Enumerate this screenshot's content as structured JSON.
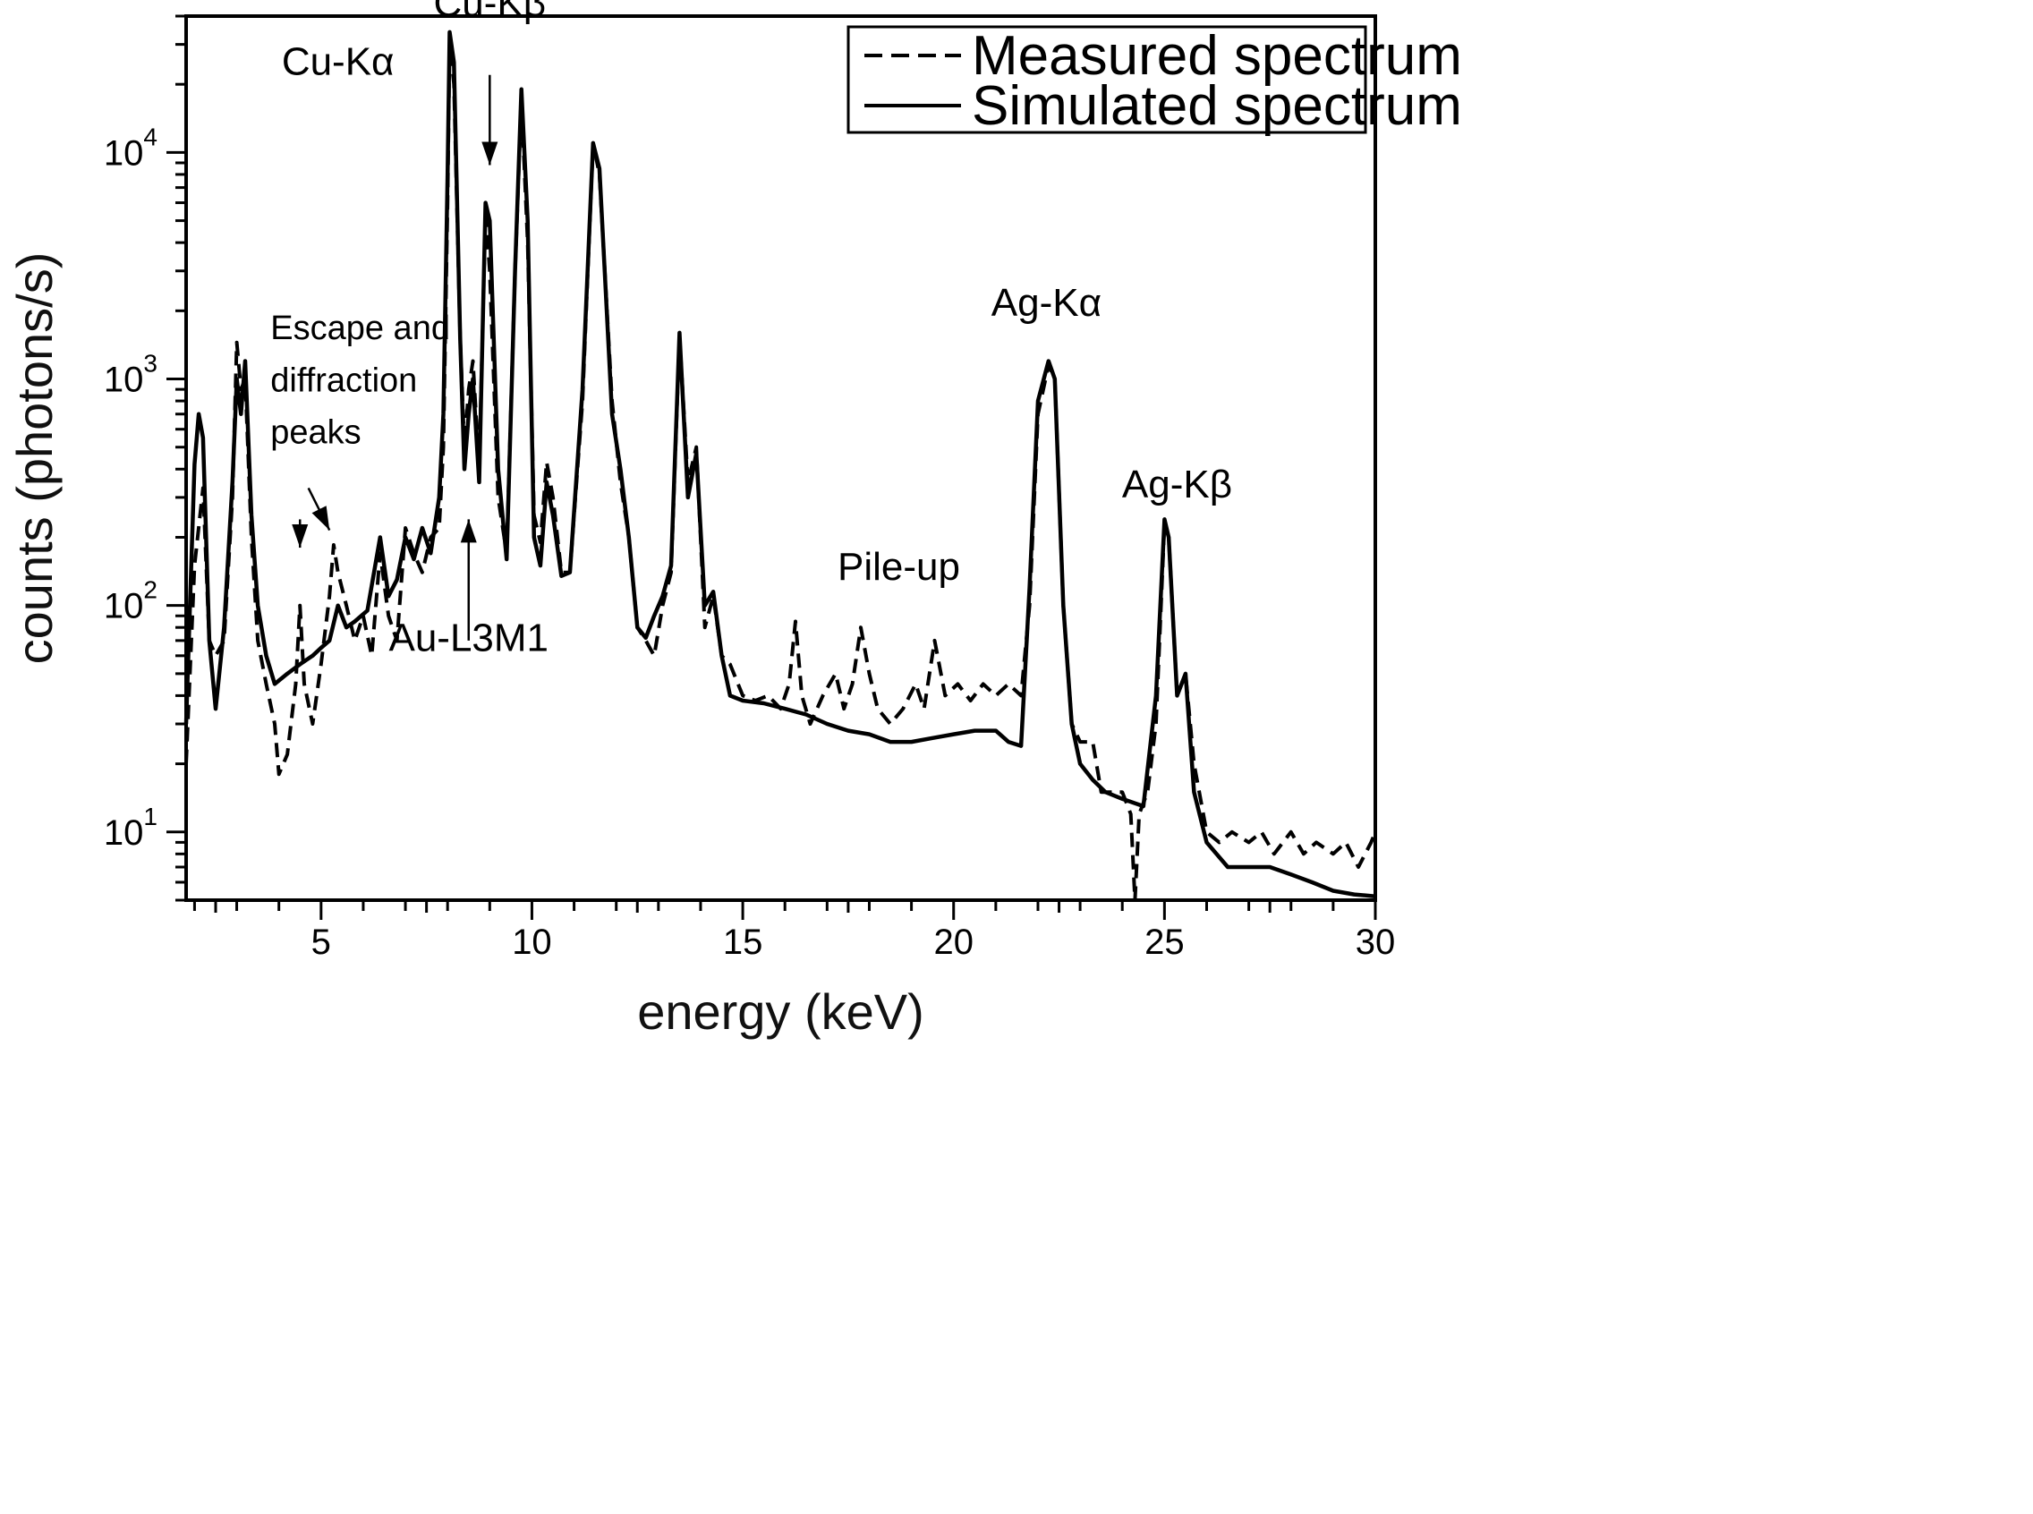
{
  "chart_data": {
    "type": "line",
    "title": "",
    "xlabel": "energy (keV)",
    "ylabel": "counts (photons/s)",
    "xlim": [
      1.8,
      30
    ],
    "ylim": [
      5,
      40000
    ],
    "yscale": "log",
    "grid": false,
    "legend_position": "top-right",
    "x_ticks": [
      {
        "value": 5,
        "label": "5"
      },
      {
        "value": 10,
        "label": "10"
      },
      {
        "value": 15,
        "label": "15"
      },
      {
        "value": 20,
        "label": "20"
      },
      {
        "value": 25,
        "label": "25"
      },
      {
        "value": 30,
        "label": "30"
      }
    ],
    "y_ticks": [
      {
        "value": 10,
        "base": "10",
        "exp": "1"
      },
      {
        "value": 100,
        "base": "10",
        "exp": "2"
      },
      {
        "value": 1000,
        "base": "10",
        "exp": "3"
      },
      {
        "value": 10000,
        "base": "10",
        "exp": "4"
      }
    ],
    "series": [
      {
        "name": "Measured spectrum",
        "style": "dashed",
        "color": "#000000",
        "points": [
          [
            1.8,
            20
          ],
          [
            2.0,
            150
          ],
          [
            2.2,
            330
          ],
          [
            2.35,
            70
          ],
          [
            2.5,
            60
          ],
          [
            2.7,
            70
          ],
          [
            2.9,
            300
          ],
          [
            3.0,
            1450
          ],
          [
            3.1,
            900
          ],
          [
            3.2,
            1000
          ],
          [
            3.35,
            200
          ],
          [
            3.5,
            70
          ],
          [
            3.7,
            45
          ],
          [
            3.9,
            30
          ],
          [
            4.0,
            18
          ],
          [
            4.2,
            22
          ],
          [
            4.4,
            45
          ],
          [
            4.5,
            100
          ],
          [
            4.6,
            45
          ],
          [
            4.8,
            30
          ],
          [
            5.0,
            55
          ],
          [
            5.2,
            110
          ],
          [
            5.3,
            185
          ],
          [
            5.4,
            140
          ],
          [
            5.6,
            100
          ],
          [
            5.8,
            70
          ],
          [
            6.0,
            90
          ],
          [
            6.2,
            60
          ],
          [
            6.4,
            170
          ],
          [
            6.6,
            90
          ],
          [
            6.8,
            70
          ],
          [
            7.0,
            220
          ],
          [
            7.2,
            170
          ],
          [
            7.4,
            140
          ],
          [
            7.6,
            200
          ],
          [
            7.8,
            220
          ],
          [
            7.9,
            500
          ],
          [
            8.0,
            6000
          ],
          [
            8.05,
            31000
          ],
          [
            8.15,
            20000
          ],
          [
            8.3,
            1500
          ],
          [
            8.4,
            500
          ],
          [
            8.5,
            900
          ],
          [
            8.6,
            1200
          ],
          [
            8.75,
            400
          ],
          [
            8.9,
            5500
          ],
          [
            9.0,
            3000
          ],
          [
            9.2,
            300
          ],
          [
            9.4,
            170
          ],
          [
            9.6,
            3000
          ],
          [
            9.75,
            17000
          ],
          [
            9.9,
            4000
          ],
          [
            10.05,
            250
          ],
          [
            10.2,
            190
          ],
          [
            10.35,
            430
          ],
          [
            10.5,
            300
          ],
          [
            10.7,
            140
          ],
          [
            10.9,
            140
          ],
          [
            11.2,
            800
          ],
          [
            11.45,
            11000
          ],
          [
            11.6,
            8000
          ],
          [
            11.9,
            800
          ],
          [
            12.1,
            350
          ],
          [
            12.3,
            200
          ],
          [
            12.5,
            80
          ],
          [
            12.7,
            70
          ],
          [
            12.9,
            60
          ],
          [
            13.1,
            100
          ],
          [
            13.3,
            140
          ],
          [
            13.5,
            1550
          ],
          [
            13.7,
            350
          ],
          [
            13.9,
            500
          ],
          [
            14.1,
            80
          ],
          [
            14.3,
            110
          ],
          [
            14.5,
            60
          ],
          [
            14.7,
            55
          ],
          [
            15.0,
            40
          ],
          [
            15.3,
            38
          ],
          [
            15.6,
            40
          ],
          [
            15.9,
            35
          ],
          [
            16.1,
            45
          ],
          [
            16.25,
            85
          ],
          [
            16.4,
            40
          ],
          [
            16.6,
            30
          ],
          [
            16.9,
            40
          ],
          [
            17.2,
            50
          ],
          [
            17.4,
            35
          ],
          [
            17.6,
            45
          ],
          [
            17.8,
            80
          ],
          [
            18.0,
            50
          ],
          [
            18.2,
            35
          ],
          [
            18.5,
            30
          ],
          [
            18.8,
            35
          ],
          [
            19.1,
            45
          ],
          [
            19.3,
            35
          ],
          [
            19.55,
            70
          ],
          [
            19.8,
            40
          ],
          [
            20.1,
            45
          ],
          [
            20.4,
            38
          ],
          [
            20.7,
            45
          ],
          [
            21.0,
            40
          ],
          [
            21.3,
            45
          ],
          [
            21.6,
            40
          ],
          [
            21.8,
            100
          ],
          [
            22.0,
            700
          ],
          [
            22.25,
            1150
          ],
          [
            22.4,
            1000
          ],
          [
            22.6,
            100
          ],
          [
            22.8,
            30
          ],
          [
            23.0,
            25
          ],
          [
            23.3,
            25
          ],
          [
            23.5,
            15
          ],
          [
            23.8,
            15
          ],
          [
            24.0,
            15
          ],
          [
            24.2,
            12
          ],
          [
            24.3,
            5
          ],
          [
            24.4,
            12
          ],
          [
            24.6,
            15
          ],
          [
            24.8,
            30
          ],
          [
            25.0,
            230
          ],
          [
            25.1,
            200
          ],
          [
            25.3,
            40
          ],
          [
            25.5,
            50
          ],
          [
            25.7,
            20
          ],
          [
            26.0,
            10
          ],
          [
            26.3,
            9
          ],
          [
            26.6,
            10
          ],
          [
            27.0,
            9
          ],
          [
            27.3,
            10
          ],
          [
            27.6,
            8
          ],
          [
            28.0,
            10
          ],
          [
            28.3,
            8
          ],
          [
            28.6,
            9
          ],
          [
            29.0,
            8
          ],
          [
            29.3,
            9
          ],
          [
            29.6,
            7
          ],
          [
            29.9,
            9
          ],
          [
            30.0,
            10
          ]
        ]
      },
      {
        "name": "Simulated spectrum",
        "style": "solid",
        "color": "#000000",
        "points": [
          [
            1.8,
            30
          ],
          [
            2.0,
            420
          ],
          [
            2.1,
            700
          ],
          [
            2.2,
            550
          ],
          [
            2.35,
            70
          ],
          [
            2.5,
            35
          ],
          [
            2.7,
            80
          ],
          [
            2.9,
            350
          ],
          [
            3.0,
            1000
          ],
          [
            3.1,
            700
          ],
          [
            3.2,
            1200
          ],
          [
            3.35,
            250
          ],
          [
            3.5,
            100
          ],
          [
            3.7,
            60
          ],
          [
            3.9,
            45
          ],
          [
            4.2,
            50
          ],
          [
            4.5,
            55
          ],
          [
            4.8,
            60
          ],
          [
            5.0,
            65
          ],
          [
            5.2,
            70
          ],
          [
            5.4,
            100
          ],
          [
            5.6,
            80
          ],
          [
            5.8,
            85
          ],
          [
            6.1,
            95
          ],
          [
            6.4,
            200
          ],
          [
            6.6,
            110
          ],
          [
            6.8,
            130
          ],
          [
            7.0,
            200
          ],
          [
            7.2,
            160
          ],
          [
            7.4,
            220
          ],
          [
            7.6,
            170
          ],
          [
            7.8,
            300
          ],
          [
            7.9,
            700
          ],
          [
            8.0,
            8000
          ],
          [
            8.05,
            34000
          ],
          [
            8.15,
            25000
          ],
          [
            8.3,
            1500
          ],
          [
            8.4,
            400
          ],
          [
            8.5,
            700
          ],
          [
            8.6,
            1000
          ],
          [
            8.75,
            350
          ],
          [
            8.9,
            6000
          ],
          [
            9.0,
            5000
          ],
          [
            9.2,
            400
          ],
          [
            9.4,
            160
          ],
          [
            9.6,
            3000
          ],
          [
            9.75,
            19000
          ],
          [
            9.9,
            5000
          ],
          [
            10.05,
            200
          ],
          [
            10.2,
            150
          ],
          [
            10.35,
            350
          ],
          [
            10.5,
            250
          ],
          [
            10.7,
            135
          ],
          [
            10.9,
            140
          ],
          [
            11.2,
            900
          ],
          [
            11.45,
            11000
          ],
          [
            11.6,
            8500
          ],
          [
            11.9,
            700
          ],
          [
            12.1,
            400
          ],
          [
            12.3,
            200
          ],
          [
            12.5,
            80
          ],
          [
            12.7,
            72
          ],
          [
            12.9,
            90
          ],
          [
            13.1,
            110
          ],
          [
            13.3,
            150
          ],
          [
            13.5,
            1600
          ],
          [
            13.7,
            300
          ],
          [
            13.9,
            470
          ],
          [
            14.1,
            100
          ],
          [
            14.3,
            115
          ],
          [
            14.5,
            60
          ],
          [
            14.7,
            40
          ],
          [
            15.0,
            38
          ],
          [
            15.5,
            37
          ],
          [
            16.0,
            35
          ],
          [
            16.5,
            33
          ],
          [
            17.0,
            30
          ],
          [
            17.5,
            28
          ],
          [
            18.0,
            27
          ],
          [
            18.5,
            25
          ],
          [
            19.0,
            25
          ],
          [
            19.5,
            26
          ],
          [
            20.0,
            27
          ],
          [
            20.5,
            28
          ],
          [
            21.0,
            28
          ],
          [
            21.3,
            25
          ],
          [
            21.6,
            24
          ],
          [
            21.8,
            120
          ],
          [
            22.0,
            800
          ],
          [
            22.25,
            1200
          ],
          [
            22.4,
            1000
          ],
          [
            22.6,
            100
          ],
          [
            22.8,
            30
          ],
          [
            23.0,
            20
          ],
          [
            23.3,
            17
          ],
          [
            23.6,
            15
          ],
          [
            24.0,
            14
          ],
          [
            24.5,
            13
          ],
          [
            24.8,
            40
          ],
          [
            25.0,
            240
          ],
          [
            25.1,
            200
          ],
          [
            25.3,
            40
          ],
          [
            25.5,
            50
          ],
          [
            25.7,
            15
          ],
          [
            26.0,
            9
          ],
          [
            26.5,
            7
          ],
          [
            27.0,
            7
          ],
          [
            27.5,
            7
          ],
          [
            28.0,
            6.5
          ],
          [
            28.5,
            6
          ],
          [
            29.0,
            5.5
          ],
          [
            29.5,
            5.3
          ],
          [
            30.0,
            5.2
          ]
        ]
      }
    ],
    "annotations": [
      {
        "text": "Cu-Kα",
        "x": 5.4,
        "y": 22000
      },
      {
        "text": "Cu-Kβ",
        "x": 9.0,
        "y": 40000
      },
      {
        "text": "Escape and",
        "x": 3.8,
        "y": 1500
      },
      {
        "text": "diffraction",
        "x": 3.8,
        "y": 880
      },
      {
        "text": "peaks",
        "x": 3.8,
        "y": 520
      },
      {
        "text": "Au-L3M1",
        "x": 8.5,
        "y": 63
      },
      {
        "text": "Ag-Kα",
        "x": 22.2,
        "y": 1900
      },
      {
        "text": "Ag-Kβ",
        "x": 25.3,
        "y": 300
      },
      {
        "text": "Pile-up",
        "x": 18.7,
        "y": 130
      }
    ],
    "arrows": [
      {
        "from": [
          9.0,
          22000
        ],
        "to": [
          9.0,
          8800
        ]
      },
      {
        "from": [
          4.5,
          240
        ],
        "to": [
          4.5,
          180
        ]
      },
      {
        "from": [
          4.7,
          330
        ],
        "to": [
          5.2,
          215
        ]
      },
      {
        "from": [
          8.5,
          70
        ],
        "to": [
          8.5,
          240
        ]
      }
    ]
  }
}
